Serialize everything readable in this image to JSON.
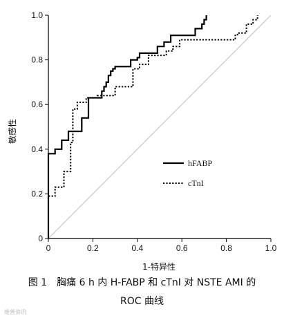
{
  "chart_data": {
    "type": "line",
    "title": "",
    "xlabel": "1-特异性",
    "ylabel": "敏感性",
    "xlim": [
      0,
      1.0
    ],
    "ylim": [
      0,
      1.0
    ],
    "xticks": [
      "0",
      "0.2",
      "0.4",
      "0.6",
      "0.8",
      "1.0"
    ],
    "yticks": [
      "0",
      "0.2",
      "0.4",
      "0.6",
      "0.8",
      "1.0"
    ],
    "grid": false,
    "legend_position": "center-right",
    "reference_line": {
      "from": [
        0,
        0
      ],
      "to": [
        1,
        1
      ],
      "color": "#c8c8c8"
    },
    "series": [
      {
        "name": "hFABP",
        "style": "solid",
        "color": "#000000",
        "x": [
          0,
          0,
          0.03,
          0.03,
          0.06,
          0.06,
          0.09,
          0.09,
          0.15,
          0.15,
          0.18,
          0.18,
          0.24,
          0.24,
          0.25,
          0.25,
          0.26,
          0.26,
          0.27,
          0.27,
          0.28,
          0.28,
          0.29,
          0.29,
          0.3,
          0.3,
          0.37,
          0.37,
          0.4,
          0.4,
          0.41,
          0.41,
          0.49,
          0.49,
          0.52,
          0.52,
          0.55,
          0.55,
          0.66,
          0.66,
          0.69,
          0.69,
          0.7,
          0.7,
          0.71,
          0.71
        ],
        "y": [
          0,
          0.38,
          0.38,
          0.4,
          0.4,
          0.44,
          0.44,
          0.48,
          0.48,
          0.54,
          0.54,
          0.63,
          0.63,
          0.66,
          0.66,
          0.68,
          0.68,
          0.7,
          0.7,
          0.73,
          0.73,
          0.75,
          0.75,
          0.76,
          0.76,
          0.77,
          0.77,
          0.8,
          0.8,
          0.81,
          0.81,
          0.83,
          0.83,
          0.86,
          0.86,
          0.88,
          0.88,
          0.91,
          0.91,
          0.94,
          0.94,
          0.96,
          0.96,
          0.98,
          0.98,
          1.0
        ]
      },
      {
        "name": "cTnI",
        "style": "dotted",
        "color": "#000000",
        "x": [
          0,
          0,
          0.03,
          0.03,
          0.07,
          0.07,
          0.1,
          0.1,
          0.11,
          0.11,
          0.13,
          0.13,
          0.17,
          0.17,
          0.22,
          0.22,
          0.3,
          0.3,
          0.38,
          0.38,
          0.41,
          0.41,
          0.45,
          0.45,
          0.53,
          0.53,
          0.56,
          0.56,
          0.59,
          0.59,
          0.84,
          0.84,
          0.85,
          0.85,
          0.89,
          0.89,
          0.92,
          0.92,
          0.94,
          0.94
        ],
        "y": [
          0,
          0.19,
          0.19,
          0.23,
          0.23,
          0.3,
          0.3,
          0.43,
          0.43,
          0.58,
          0.58,
          0.61,
          0.61,
          0.63,
          0.63,
          0.64,
          0.64,
          0.68,
          0.68,
          0.76,
          0.76,
          0.78,
          0.78,
          0.82,
          0.82,
          0.84,
          0.84,
          0.86,
          0.86,
          0.89,
          0.89,
          0.91,
          0.91,
          0.92,
          0.92,
          0.96,
          0.96,
          0.98,
          0.98,
          1.0
        ]
      }
    ]
  },
  "caption": {
    "line1": "图 1　胸痛 6 h 内 H-FABP 和 cTnI 对 NSTE AMI 的",
    "line2": "ROC 曲线"
  },
  "watermark": {
    "text": "维普资讯"
  }
}
